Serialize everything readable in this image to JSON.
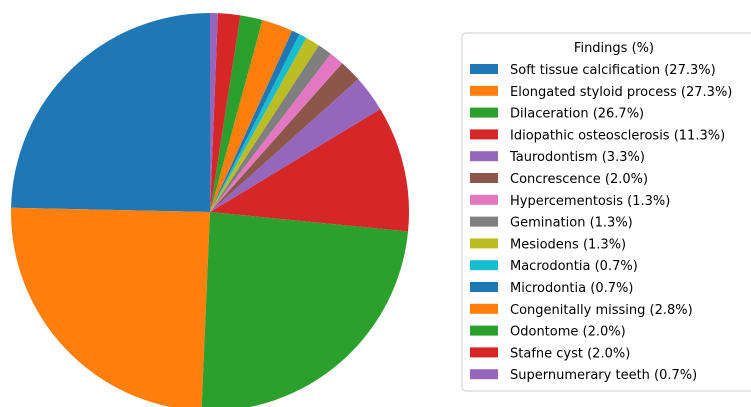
{
  "chart_data": {
    "type": "pie",
    "title": "",
    "legend_title": "Findings (%)",
    "legend_position": "right",
    "start_angle_deg": 90,
    "direction": "counterclockwise",
    "slices": [
      {
        "label": "Soft tissue calcification (27.3%)",
        "value": 27.3,
        "color": "#1f77b4"
      },
      {
        "label": "Elongated styloid process (27.3%)",
        "value": 27.3,
        "color": "#ff7f0e"
      },
      {
        "label": "Dilaceration (26.7%)",
        "value": 26.7,
        "color": "#2ca02c"
      },
      {
        "label": "Idiopathic osteosclerosis (11.3%)",
        "value": 11.3,
        "color": "#d62728"
      },
      {
        "label": "Taurodontism (3.3%)",
        "value": 3.3,
        "color": "#9467bd"
      },
      {
        "label": "Concrescence (2.0%)",
        "value": 2.0,
        "color": "#8c564b"
      },
      {
        "label": "Hypercementosis (1.3%)",
        "value": 1.3,
        "color": "#e377c2"
      },
      {
        "label": "Gemination (1.3%)",
        "value": 1.3,
        "color": "#7f7f7f"
      },
      {
        "label": "Mesiodens (1.3%)",
        "value": 1.3,
        "color": "#bcbd22"
      },
      {
        "label": "Macrodontia (0.7%)",
        "value": 0.7,
        "color": "#17becf"
      },
      {
        "label": "Microdontia (0.7%)",
        "value": 0.7,
        "color": "#1f77b4"
      },
      {
        "label": "Congenitally missing (2.8%)",
        "value": 2.8,
        "color": "#ff7f0e"
      },
      {
        "label": "Odontome (2.0%)",
        "value": 2.0,
        "color": "#2ca02c"
      },
      {
        "label": "Stafne cyst (2.0%)",
        "value": 2.0,
        "color": "#d62728"
      },
      {
        "label": "Supernumerary teeth (0.7%)",
        "value": 0.7,
        "color": "#9467bd"
      }
    ]
  }
}
